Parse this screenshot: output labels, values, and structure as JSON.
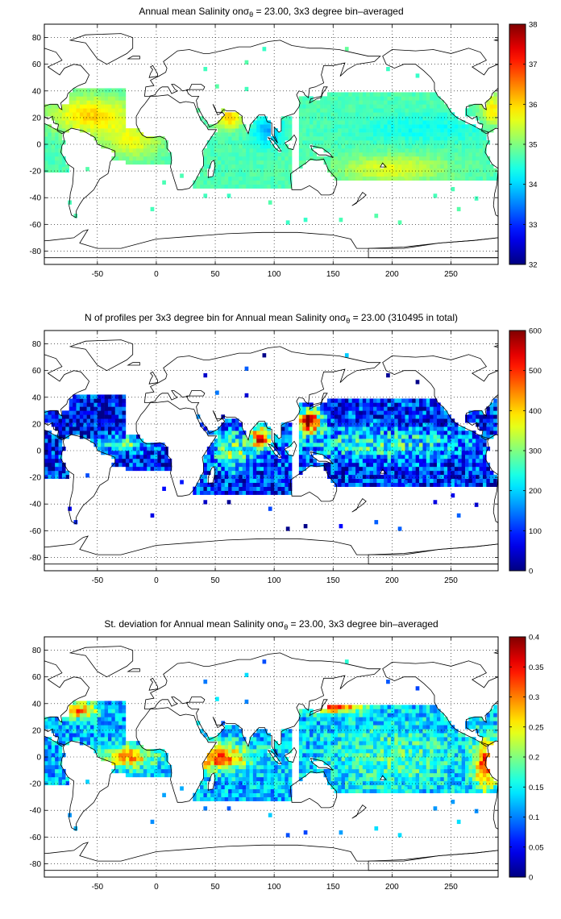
{
  "chart_data": [
    {
      "type": "heatmap",
      "title": "Annual mean Salinity on σθ = 23.00, 3x3 degree bin–averaged",
      "title_parts": {
        "pre": "Annual mean Salinity on",
        "sigma": "σ",
        "sub": "θ",
        "post": " = 23.00, 3x3 degree bin–averaged"
      },
      "xlim": [
        -95,
        290
      ],
      "ylim": [
        -90,
        90
      ],
      "xticks": [
        -50,
        0,
        50,
        100,
        150,
        200,
        250
      ],
      "yticks": [
        80,
        60,
        40,
        20,
        0,
        -20,
        -40,
        -60,
        -80
      ],
      "grid": true,
      "colorbar": {
        "min": 32,
        "max": 38,
        "ticks": [
          32,
          33,
          34,
          35,
          36,
          37,
          38
        ]
      },
      "colormap": "jet",
      "field": "salinity"
    },
    {
      "type": "heatmap",
      "title": "N of profiles per 3x3 degree bin for Annual mean Salinity on σθ = 23.00 (310495 in total)",
      "title_parts": {
        "pre": "N of profiles per 3x3 degree bin for Annual mean Salinity on",
        "sigma": "σ",
        "sub": "θ",
        "post": " = 23.00 (310495 in total)"
      },
      "xlim": [
        -95,
        290
      ],
      "ylim": [
        -90,
        90
      ],
      "xticks": [
        -50,
        0,
        50,
        100,
        150,
        200,
        250
      ],
      "yticks": [
        80,
        60,
        40,
        20,
        0,
        -20,
        -40,
        -60,
        -80
      ],
      "grid": true,
      "colorbar": {
        "min": 0,
        "max": 600,
        "ticks": [
          0,
          100,
          200,
          300,
          400,
          500,
          600
        ]
      },
      "colormap": "jet",
      "field": "count"
    },
    {
      "type": "heatmap",
      "title": "St. deviation for Annual mean Salinity on σθ = 23.00, 3x3 degree bin–averaged",
      "title_parts": {
        "pre": "St. deviation for Annual mean Salinity on",
        "sigma": "σ",
        "sub": "θ",
        "post": " = 23.00, 3x3 degree bin–averaged"
      },
      "xlim": [
        -95,
        290
      ],
      "ylim": [
        -90,
        90
      ],
      "xticks": [
        -50,
        0,
        50,
        100,
        150,
        200,
        250
      ],
      "yticks": [
        80,
        60,
        40,
        20,
        0,
        -20,
        -40,
        -60,
        -80
      ],
      "grid": true,
      "colorbar": {
        "min": 0,
        "max": 0.4,
        "ticks": [
          0,
          0.05,
          0.1,
          0.15,
          0.2,
          0.25,
          0.3,
          0.35,
          0.4
        ]
      },
      "colormap": "jet",
      "field": "std"
    }
  ]
}
